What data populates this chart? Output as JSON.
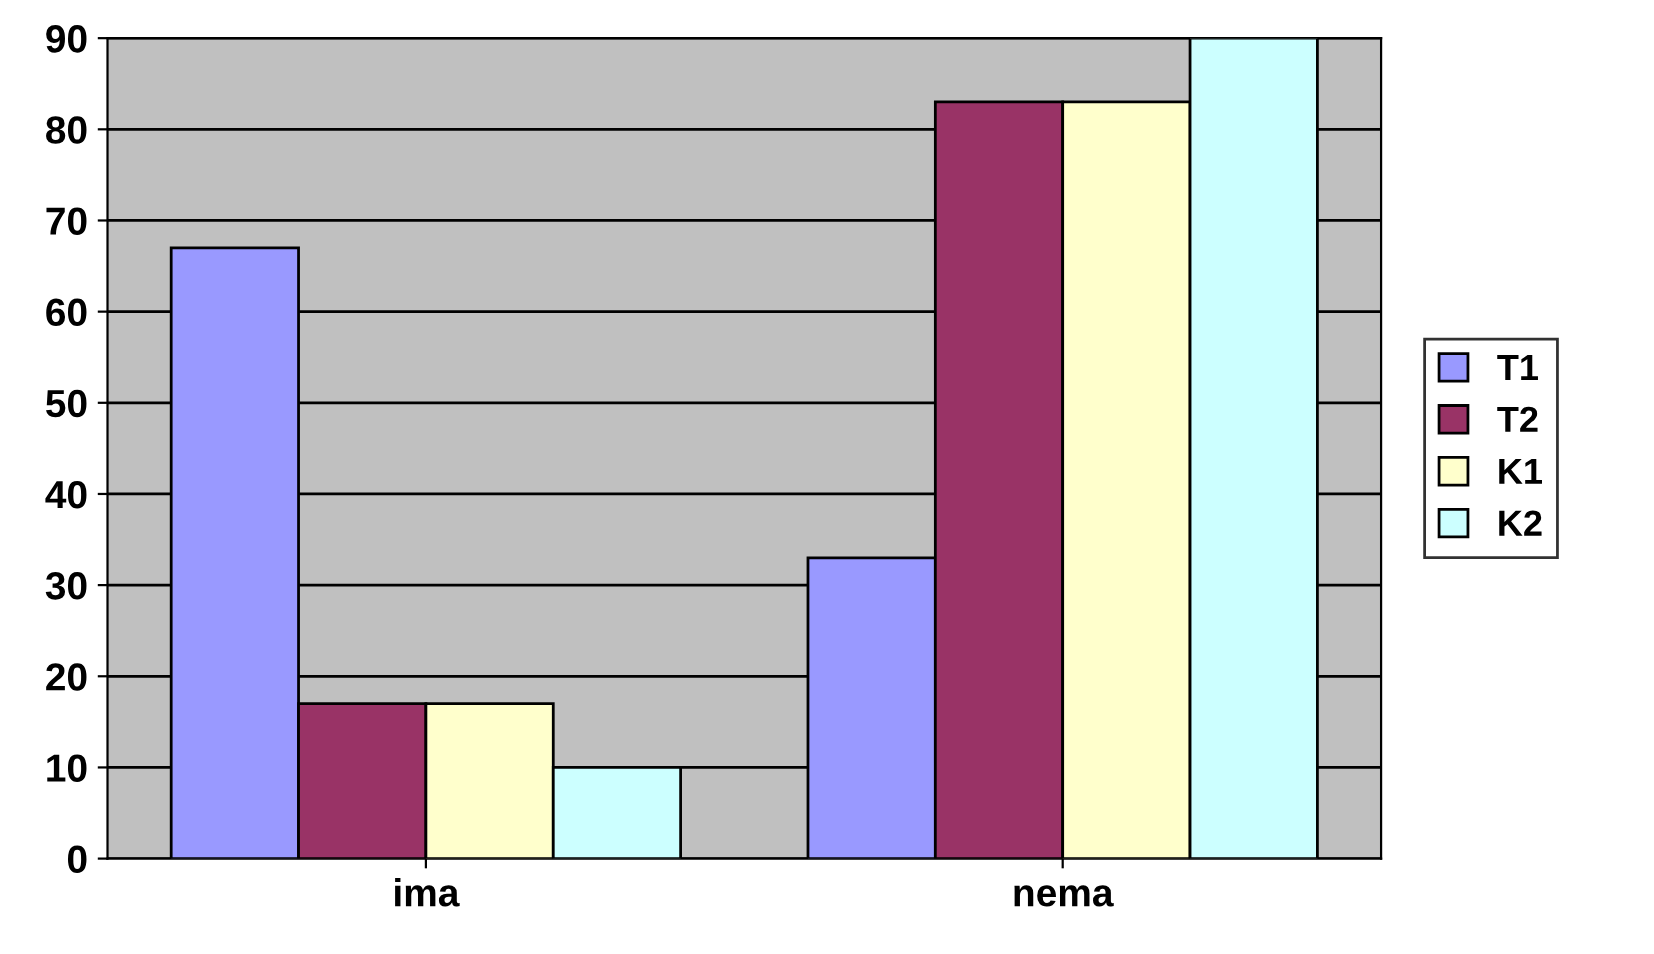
{
  "chart_data": {
    "type": "bar",
    "categories": [
      "ima",
      "nema"
    ],
    "series": [
      {
        "name": "T1",
        "color": "#9999ff",
        "values": [
          67,
          33
        ]
      },
      {
        "name": "T2",
        "color": "#993366",
        "values": [
          17,
          83
        ]
      },
      {
        "name": "K1",
        "color": "#ffffcc",
        "values": [
          17,
          83
        ]
      },
      {
        "name": "K2",
        "color": "#ccffff",
        "values": [
          10,
          90
        ]
      }
    ],
    "ylim": [
      0,
      90
    ],
    "yticks": [
      0,
      10,
      20,
      30,
      40,
      50,
      60,
      70,
      80,
      90
    ],
    "grid": "y",
    "legend": "right"
  }
}
